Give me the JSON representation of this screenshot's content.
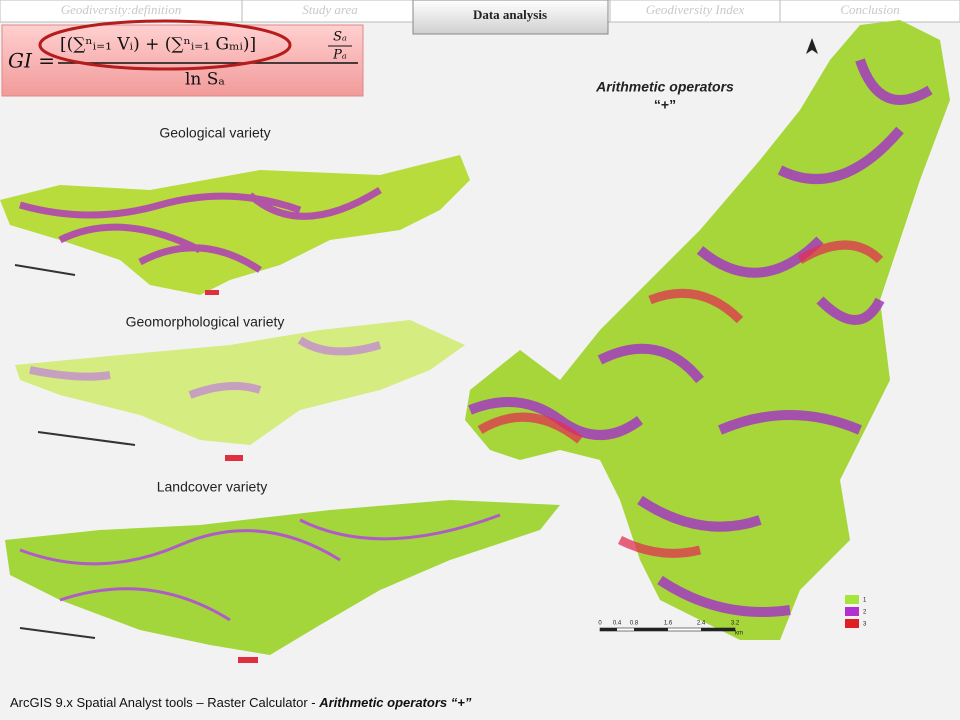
{
  "nav": {
    "tabs": [
      "Geodiversity:definition",
      "Study area",
      "Data analysis",
      "Geodiversity Index",
      "Conclusion"
    ]
  },
  "formula": {
    "lhs": "GI =",
    "numerator": "[(∑ⁿᵢ₌₁ Vᵢ) + (∑ⁿᵢ₌₁ Gₘᵢ)]",
    "ratio_top": "Sₐ",
    "ratio_bottom": "Pₐ",
    "denominator": "ln Sₐ"
  },
  "maps": {
    "geological": "Geological variety",
    "geomorphological": "Geomorphological variety",
    "landcover": "Landcover variety"
  },
  "result": {
    "title": "Arithmetic operators",
    "operator": "“+”",
    "scale": [
      "0",
      "0.4",
      "0.8",
      "1.6",
      "2.4",
      "3.2"
    ],
    "scale_unit": "km",
    "legend": [
      "1",
      "2",
      "3"
    ]
  },
  "caption": {
    "text": "ArcGIS 9.x Spatial Analyst tools – Raster Calculator - ",
    "emphasis": "Arithmetic operators  “+”"
  }
}
